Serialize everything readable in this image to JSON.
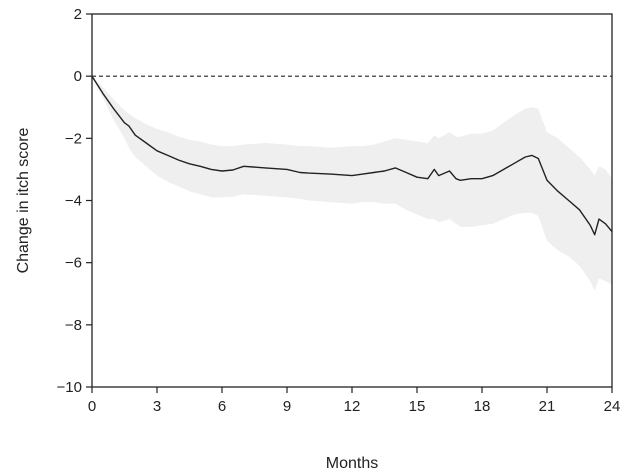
{
  "chart_data": {
    "type": "line",
    "title": "",
    "xlabel": "Months",
    "ylabel": "Change in itch score",
    "xlim": [
      0,
      24
    ],
    "ylim": [
      -10,
      2
    ],
    "x_ticks": [
      0,
      3,
      6,
      9,
      12,
      15,
      18,
      21,
      24
    ],
    "x_tick_labels": [
      "0",
      "3",
      "6",
      "9",
      "12",
      "15",
      "18",
      "21",
      "24"
    ],
    "y_ticks": [
      2,
      0,
      -2,
      -4,
      -6,
      -8,
      -10
    ],
    "y_tick_labels": [
      "2",
      "0",
      "−2",
      "−4",
      "−6",
      "−8",
      "−10"
    ],
    "reference_line": {
      "y": 0,
      "style": "dashed"
    },
    "grid": false,
    "series": [
      {
        "line_color": "#222222",
        "band_color": "#efefef",
        "x": [
          0,
          0.5,
          1.0,
          1.5,
          1.7,
          2.0,
          2.5,
          3.0,
          3.5,
          4.0,
          4.5,
          5.0,
          5.5,
          6.0,
          6.5,
          7.0,
          8.0,
          9.0,
          9.6,
          10.0,
          11.0,
          12.0,
          12.5,
          13.0,
          13.5,
          14.0,
          14.5,
          15.0,
          15.5,
          15.8,
          16.0,
          16.5,
          16.8,
          17.0,
          17.5,
          18.0,
          18.5,
          19.0,
          19.5,
          20.0,
          20.3,
          20.6,
          21.0,
          21.5,
          22.0,
          22.5,
          23.0,
          23.2,
          23.4,
          23.7,
          24.0
        ],
        "y": [
          0,
          -0.55,
          -1.05,
          -1.5,
          -1.6,
          -1.9,
          -2.15,
          -2.4,
          -2.55,
          -2.7,
          -2.82,
          -2.9,
          -3.0,
          -3.05,
          -3.02,
          -2.9,
          -2.95,
          -3.0,
          -3.1,
          -3.12,
          -3.15,
          -3.2,
          -3.15,
          -3.1,
          -3.05,
          -2.95,
          -3.1,
          -3.25,
          -3.3,
          -3.0,
          -3.2,
          -3.05,
          -3.3,
          -3.35,
          -3.3,
          -3.3,
          -3.2,
          -3.0,
          -2.8,
          -2.6,
          -2.55,
          -2.65,
          -3.35,
          -3.7,
          -4.0,
          -4.3,
          -4.8,
          -5.1,
          -4.6,
          -4.75,
          -5.0
        ],
        "lower": [
          0,
          -0.7,
          -1.4,
          -2.0,
          -2.3,
          -2.6,
          -2.9,
          -3.2,
          -3.4,
          -3.55,
          -3.7,
          -3.8,
          -3.9,
          -3.9,
          -3.88,
          -3.8,
          -3.85,
          -3.9,
          -3.95,
          -4.0,
          -4.05,
          -4.1,
          -4.05,
          -4.05,
          -4.1,
          -4.1,
          -4.3,
          -4.45,
          -4.6,
          -4.6,
          -4.7,
          -4.6,
          -4.75,
          -4.85,
          -4.85,
          -4.8,
          -4.75,
          -4.6,
          -4.45,
          -4.4,
          -4.4,
          -4.5,
          -5.3,
          -5.6,
          -5.8,
          -6.1,
          -6.6,
          -6.9,
          -6.5,
          -6.6,
          -6.7
        ],
        "upper": [
          0,
          -0.35,
          -0.75,
          -1.1,
          -1.2,
          -1.35,
          -1.55,
          -1.7,
          -1.8,
          -1.95,
          -2.05,
          -2.1,
          -2.2,
          -2.25,
          -2.25,
          -2.2,
          -2.15,
          -2.2,
          -2.25,
          -2.25,
          -2.3,
          -2.25,
          -2.25,
          -2.2,
          -2.1,
          -2.0,
          -2.05,
          -2.1,
          -2.15,
          -1.9,
          -2.0,
          -1.8,
          -1.95,
          -1.95,
          -1.85,
          -1.85,
          -1.75,
          -1.5,
          -1.25,
          -1.05,
          -1.0,
          -1.05,
          -1.8,
          -2.0,
          -2.3,
          -2.6,
          -3.0,
          -3.2,
          -2.9,
          -3.0,
          -3.3
        ]
      }
    ]
  }
}
